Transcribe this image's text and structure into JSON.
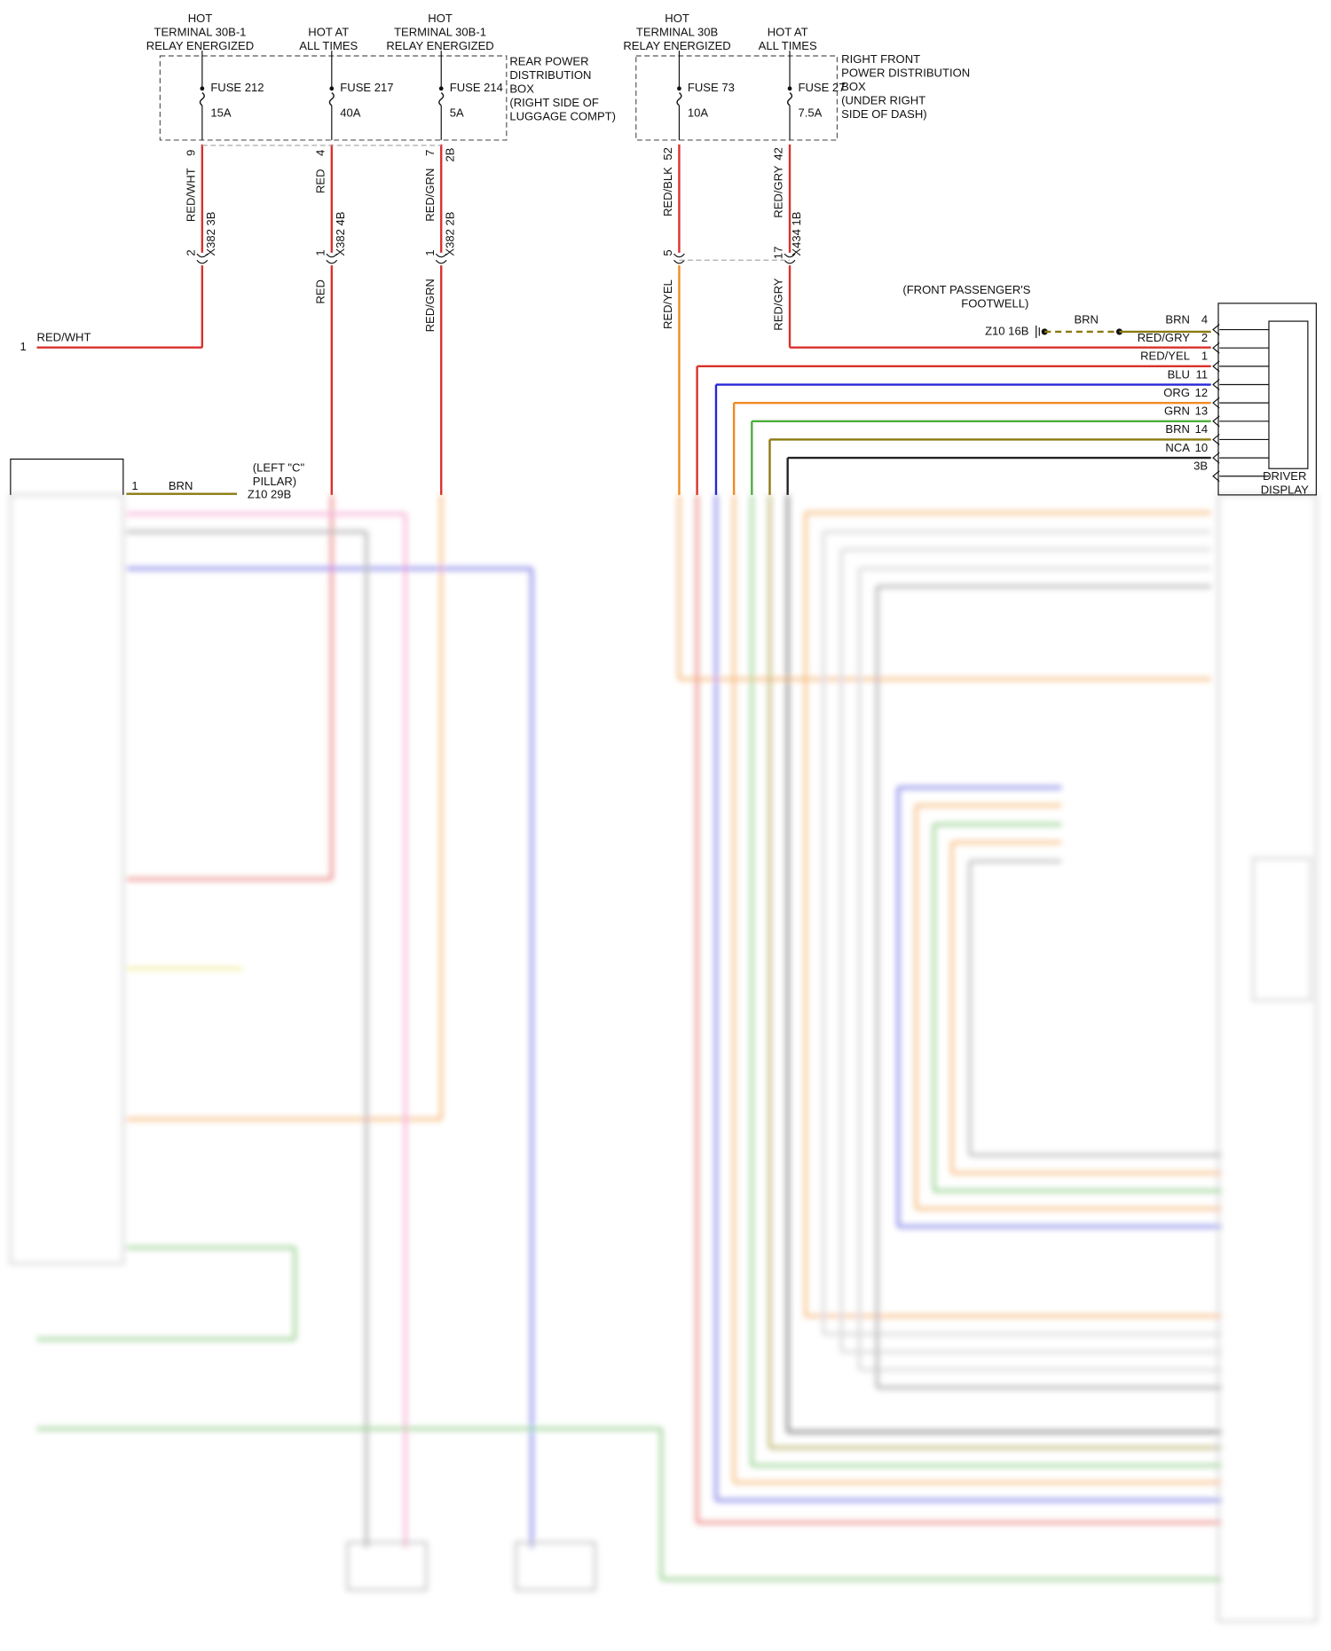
{
  "rear_box": {
    "feeds": [
      {
        "header": [
          "HOT",
          "TERMINAL 30B-1",
          "RELAY ENERGIZED"
        ],
        "fuse": "FUSE 212",
        "rating": "15A",
        "pin": "9",
        "wire": "RED/WHT",
        "connector_pin": "2",
        "connector": "X382 3B"
      },
      {
        "header": [
          "HOT AT",
          "ALL TIMES"
        ],
        "fuse": "FUSE 217",
        "rating": "40A",
        "pin": "4",
        "wire": "RED",
        "connector_pin": "1",
        "connector": "X382 4B",
        "wire_below": "RED"
      },
      {
        "header": [
          "HOT",
          "TERMINAL 30B-1",
          "RELAY ENERGIZED"
        ],
        "fuse": "FUSE 214",
        "rating": "5A",
        "pin": "7",
        "pin_note": "2B",
        "wire": "RED/GRN",
        "connector_pin": "1",
        "connector": "X382 2B",
        "wire_below": "RED/GRN"
      }
    ],
    "label": [
      "REAR POWER",
      "DISTRIBUTION",
      "BOX",
      "(RIGHT SIDE OF",
      "LUGGAGE COMPT)"
    ]
  },
  "left_end": {
    "pin": "1",
    "wire": "RED/WHT"
  },
  "front_box": {
    "feeds": [
      {
        "header": [
          "HOT",
          "TERMINAL 30B",
          "RELAY ENERGIZED"
        ],
        "fuse": "FUSE 73",
        "rating": "10A",
        "pin": "52",
        "wire": "RED/BLK",
        "connector_pin": "5",
        "wire_below": "RED/YEL"
      },
      {
        "header": [
          "HOT AT",
          "ALL TIMES"
        ],
        "fuse": "FUSE 27",
        "rating": "7.5A",
        "pin": "42",
        "wire": "RED/GRY",
        "connector_pin": "17",
        "connector": "X434 1B",
        "wire_below": "RED/GRY"
      }
    ],
    "label": [
      "RIGHT FRONT",
      "POWER DISTRIBUTION",
      "BOX",
      "(UNDER RIGHT",
      "SIDE OF DASH)"
    ]
  },
  "ground_front": {
    "location": [
      "(FRONT PASSENGER'S",
      "FOOTWELL)"
    ],
    "name": "Z10 16B",
    "wire": "BRN"
  },
  "driver_display": {
    "label": [
      "DRIVER",
      "DISPLAY"
    ],
    "pins": [
      {
        "wire": "BRN",
        "pin": "4"
      },
      {
        "wire": "RED/GRY",
        "pin": "2"
      },
      {
        "wire": "RED/YEL",
        "pin": "1"
      },
      {
        "wire": "BLU",
        "pin": "11"
      },
      {
        "wire": "ORG",
        "pin": "12"
      },
      {
        "wire": "GRN",
        "pin": "13"
      },
      {
        "wire": "BRN",
        "pin": "14"
      },
      {
        "wire": "NCA",
        "pin": "10"
      },
      {
        "pin": "3B"
      }
    ]
  },
  "ground_left": {
    "pin": "1",
    "wire": "BRN",
    "location": [
      "(LEFT \"C\"",
      "PILLAR)"
    ],
    "name": "Z10 29B"
  }
}
